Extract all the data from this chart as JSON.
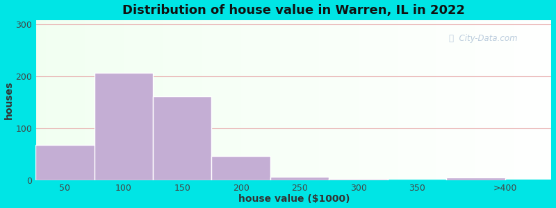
{
  "title": "Distribution of house value in Warren, IL in 2022",
  "xlabel": "house value ($1000)",
  "ylabel": "houses",
  "bar_left_edges": [
    0,
    50,
    100,
    150,
    200,
    250,
    300,
    350
  ],
  "bar_widths": [
    50,
    50,
    50,
    50,
    50,
    50,
    50,
    50
  ],
  "bar_heights": [
    68,
    207,
    162,
    47,
    6,
    3,
    0,
    5
  ],
  "bar_color": "#c4aed4",
  "bar_edgecolor": "#ffffff",
  "xtick_positions": [
    25,
    75,
    125,
    175,
    225,
    275,
    325,
    400
  ],
  "xtick_labels": [
    "50",
    "100",
    "150",
    "200",
    "250",
    "300",
    "350",
    ">400"
  ],
  "ytick_positions": [
    0,
    100,
    200,
    300
  ],
  "ytick_labels": [
    "0",
    "100",
    "200",
    "300"
  ],
  "ylim": [
    0,
    310
  ],
  "xlim": [
    0,
    440
  ],
  "bg_outer": "#00e5e5",
  "grid_color": "#e8b0b0",
  "watermark": "City-Data.com",
  "title_fontsize": 13,
  "axis_label_fontsize": 10,
  "tick_label_fontsize": 9
}
